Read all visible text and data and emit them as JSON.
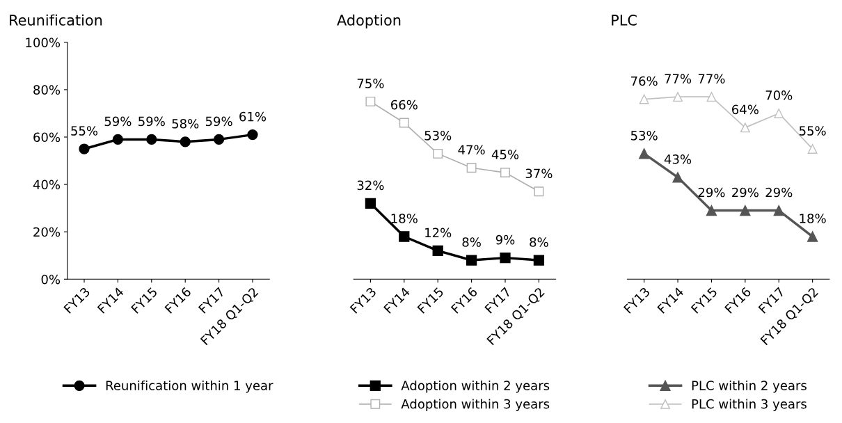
{
  "chart_data": [
    {
      "type": "line",
      "title": "Reunification",
      "categories": [
        "FY13",
        "FY14",
        "FY15",
        "FY16",
        "FY17",
        "FY18 Q1-Q2"
      ],
      "ylim": [
        0,
        100
      ],
      "yticks": [
        {
          "value": 0,
          "label": "0%"
        },
        {
          "value": 20,
          "label": "20%"
        },
        {
          "value": 40,
          "label": "40%"
        },
        {
          "value": 60,
          "label": "60%"
        },
        {
          "value": 80,
          "label": "80%"
        },
        {
          "value": 100,
          "label": "100%"
        }
      ],
      "legend": "bottom",
      "grid": false,
      "series": [
        {
          "name": "Reunification within 1 year",
          "color": "#000000",
          "marker": "circle",
          "values": [
            55,
            59,
            59,
            58,
            59,
            61
          ],
          "value_labels": [
            "55%",
            "59%",
            "59%",
            "58%",
            "59%",
            "61%"
          ]
        }
      ]
    },
    {
      "type": "line",
      "title": "Adoption",
      "categories": [
        "FY13",
        "FY14",
        "FY15",
        "FY16",
        "FY17",
        "FY18 Q1-Q2"
      ],
      "ylim": [
        0,
        100
      ],
      "tick_labels": "x",
      "legend": "bottom",
      "grid": false,
      "series": [
        {
          "name": "Adoption within 2 years",
          "color": "#000000",
          "marker": "square",
          "values": [
            32,
            18,
            12,
            8,
            9,
            8
          ],
          "value_labels": [
            "32%",
            "18%",
            "12%",
            "8%",
            "9%",
            "8%"
          ]
        },
        {
          "name": "Adoption within 3 years",
          "color": "#b0b0b0",
          "marker": "square",
          "values": [
            75,
            66,
            53,
            47,
            45,
            37
          ],
          "value_labels": [
            "75%",
            "66%",
            "53%",
            "47%",
            "45%",
            "37%"
          ]
        }
      ]
    },
    {
      "type": "line",
      "title": "PLC",
      "categories": [
        "FY13",
        "FY14",
        "FY15",
        "FY16",
        "FY17",
        "FY18 Q1-Q2"
      ],
      "ylim": [
        0,
        100
      ],
      "tick_labels": "x",
      "legend": "bottom",
      "grid": false,
      "series": [
        {
          "name": "PLC within 2 years",
          "color": "#555555",
          "marker": "triangle",
          "values": [
            53,
            43,
            29,
            29,
            29,
            18
          ],
          "value_labels": [
            "53%",
            "43%",
            "29%",
            "29%",
            "29%",
            "18%"
          ]
        },
        {
          "name": "PLC within 3 years",
          "color": "#c0c0c0",
          "marker": "triangle",
          "values": [
            76,
            77,
            77,
            64,
            70,
            55
          ],
          "value_labels": [
            "76%",
            "77%",
            "77%",
            "64%",
            "70%",
            "55%"
          ]
        }
      ]
    }
  ]
}
